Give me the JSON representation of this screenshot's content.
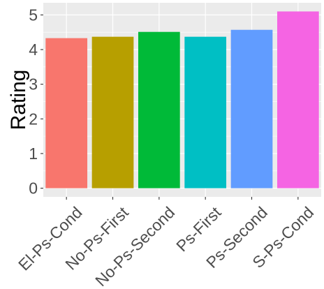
{
  "chart_data": {
    "type": "bar",
    "title": "",
    "xlabel": "",
    "ylabel": "Rating",
    "categories": [
      "El-Ps-Cond",
      "No-Ps-First",
      "No-Ps-Second",
      "Ps-First",
      "Ps-Second",
      "S-Ps-Cond"
    ],
    "values": [
      4.33,
      4.37,
      4.51,
      4.37,
      4.57,
      5.1
    ],
    "colors": [
      "#F8766D",
      "#B79F00",
      "#00BA38",
      "#00BFC4",
      "#619CFF",
      "#F564E3"
    ],
    "ylim": [
      -0.25,
      5.35
    ],
    "yticks": [
      0,
      1,
      2,
      3,
      4,
      5
    ],
    "grid": true,
    "legend": "none",
    "panel_background": "#EBEBEB"
  }
}
